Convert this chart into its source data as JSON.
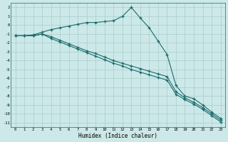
{
  "xlabel": "Humidex (Indice chaleur)",
  "background_color": "#cce8e8",
  "grid_color": "#aacccc",
  "line_color": "#1a6b6b",
  "xlim": [
    -0.5,
    23.5
  ],
  "ylim": [
    -11.5,
    2.5
  ],
  "yticks": [
    2,
    1,
    0,
    -1,
    -2,
    -3,
    -4,
    -5,
    -6,
    -7,
    -8,
    -9,
    -10,
    -11
  ],
  "xticks": [
    0,
    1,
    2,
    3,
    4,
    5,
    6,
    7,
    8,
    9,
    10,
    11,
    12,
    13,
    14,
    15,
    16,
    17,
    18,
    19,
    20,
    21,
    22,
    23
  ],
  "line1_x": [
    0,
    1,
    2,
    3,
    4,
    5,
    6,
    7,
    8,
    9,
    10,
    11,
    12,
    13,
    14,
    15,
    16,
    17,
    18,
    19,
    20,
    21,
    22,
    23
  ],
  "line1_y": [
    -1.2,
    -1.2,
    -1.1,
    -0.8,
    -0.5,
    -0.3,
    -0.1,
    0.1,
    0.3,
    0.3,
    0.4,
    0.5,
    1.0,
    2.0,
    0.8,
    -0.3,
    -1.8,
    -3.3,
    -6.8,
    -8.0,
    -8.3,
    -9.0,
    -9.8,
    -10.5
  ],
  "line2_x": [
    0,
    1,
    2,
    3,
    4,
    5,
    6,
    7,
    8,
    9,
    10,
    11,
    12,
    13,
    14,
    15,
    16,
    17,
    18,
    19,
    20,
    21,
    22,
    23
  ],
  "line2_y": [
    -1.2,
    -1.2,
    -1.2,
    -1.0,
    -1.3,
    -1.7,
    -2.1,
    -2.5,
    -2.9,
    -3.2,
    -3.6,
    -4.0,
    -4.3,
    -4.6,
    -4.9,
    -5.2,
    -5.5,
    -5.8,
    -7.5,
    -8.2,
    -8.7,
    -9.3,
    -10.0,
    -10.7
  ],
  "line3_x": [
    0,
    1,
    2,
    3,
    4,
    5,
    6,
    7,
    8,
    9,
    10,
    11,
    12,
    13,
    14,
    15,
    16,
    17,
    18,
    19,
    20,
    21,
    22,
    23
  ],
  "line3_y": [
    -1.2,
    -1.2,
    -1.2,
    -1.0,
    -1.5,
    -1.9,
    -2.3,
    -2.7,
    -3.1,
    -3.5,
    -3.9,
    -4.3,
    -4.6,
    -5.0,
    -5.3,
    -5.6,
    -5.9,
    -6.2,
    -7.8,
    -8.4,
    -8.9,
    -9.5,
    -10.2,
    -10.9
  ]
}
